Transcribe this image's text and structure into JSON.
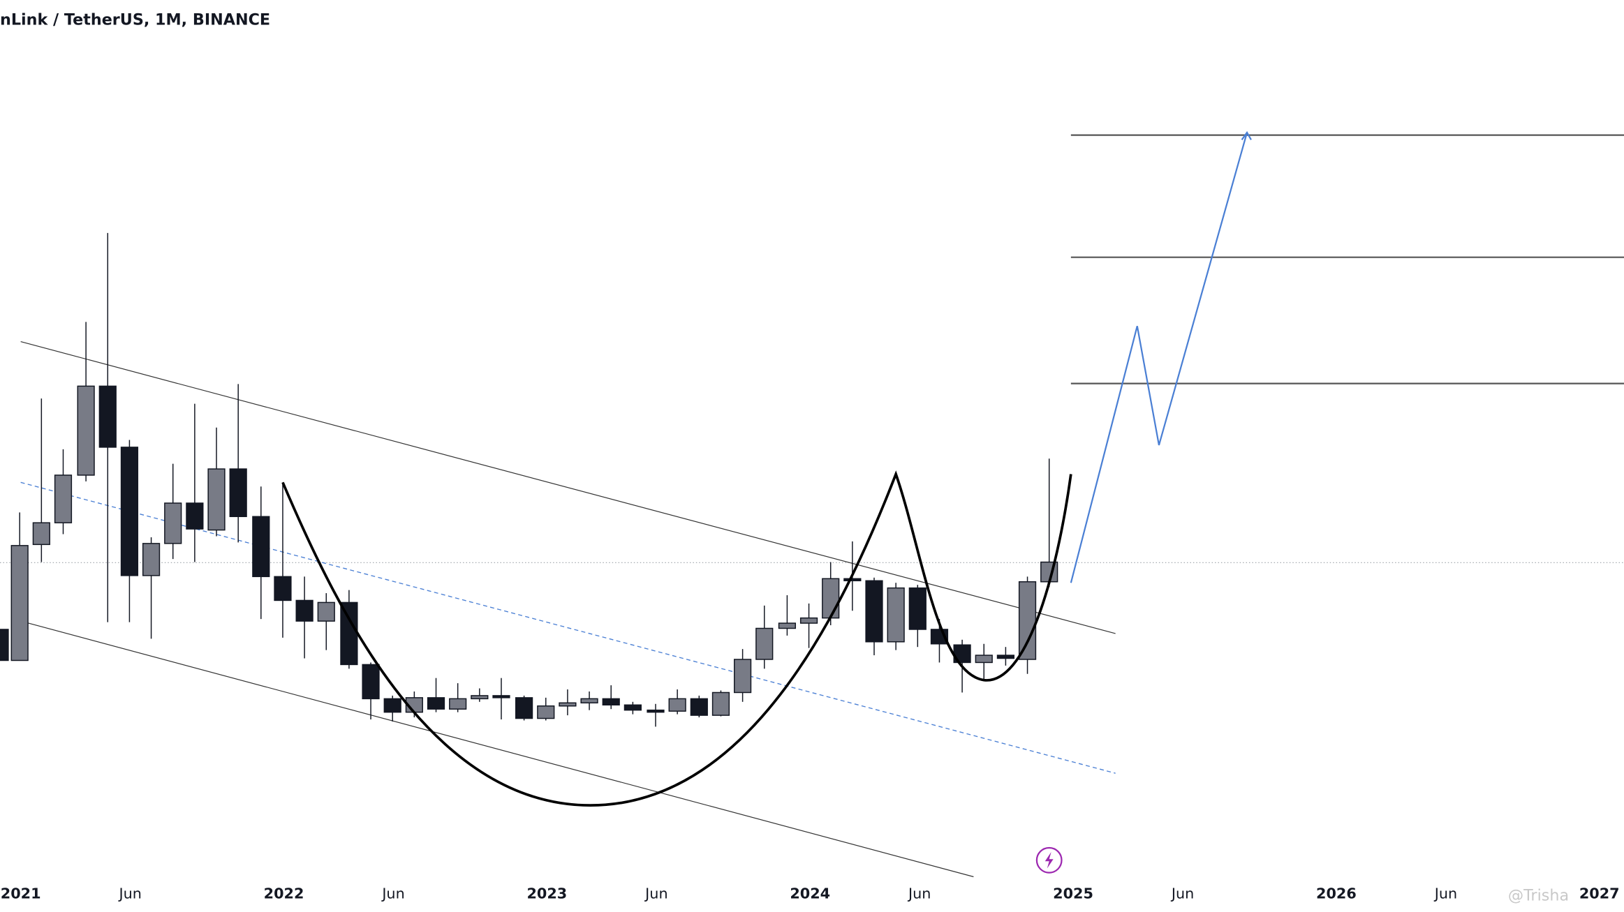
{
  "header": {
    "title": "nLink / TetherUS, 1M, BINANCE"
  },
  "x_axis": {
    "labels": [
      "2021",
      "Jun",
      "2022",
      "Jun",
      "2023",
      "Jun",
      "2024",
      "Jun",
      "2025",
      "Jun",
      "2026",
      "Jun",
      "2027"
    ]
  },
  "watermark": "@Trisha"
}
